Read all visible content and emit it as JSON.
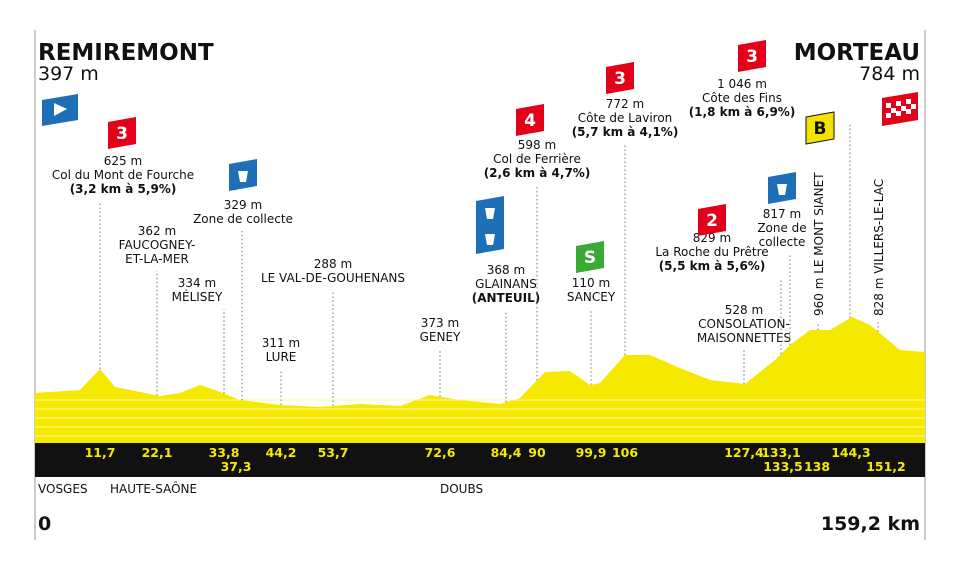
{
  "start": {
    "name": "REMIREMONT",
    "altitude": "397 m",
    "km": "0"
  },
  "finish": {
    "name": "MORTEAU",
    "altitude": "784 m",
    "km": "159,2 km"
  },
  "regions": [
    "VOSGES",
    "HAUTE-SAÔNE",
    "DOUBS"
  ],
  "points": [
    {
      "km": "11,7",
      "lines": [
        "625 m",
        "Col du Mont de Fourche",
        "(3,2 km à 5,9%)"
      ],
      "badges": [
        "3"
      ]
    },
    {
      "km": "22,1",
      "lines": [
        "362 m",
        "FAUCOGNEY-",
        "ET-LA-MER"
      ]
    },
    {
      "km": "33,8",
      "lines": [
        "334 m",
        "MÉLISEY"
      ]
    },
    {
      "km": "37,3",
      "lines": [
        "329 m",
        "Zone de collecte"
      ]
    },
    {
      "km": "44,2",
      "lines": [
        "311 m",
        "LURE"
      ]
    },
    {
      "km": "53,7",
      "lines": [
        "288 m",
        "LE VAL-DE-GOUHENANS"
      ]
    },
    {
      "km": "72,6",
      "lines": [
        "373 m",
        "GENEY"
      ]
    },
    {
      "km": "84,4",
      "lines": [
        "368 m",
        "GLAINANS",
        "(ANTEUIL)"
      ]
    },
    {
      "km": "90",
      "lines": [
        "598 m",
        "Col de Ferrière",
        "(2,6 km à 4,7%)"
      ],
      "badges": [
        "4"
      ]
    },
    {
      "km": "99,9",
      "lines": [
        "110 m",
        "SANCEY"
      ],
      "badges": [
        "S"
      ]
    },
    {
      "km": "106",
      "lines": [
        "772 m",
        "Côte de Laviron",
        "(5,7 km à 4,1%)"
      ],
      "badges": [
        "3"
      ]
    },
    {
      "km": "127,4",
      "lines": [
        "528 m",
        "CONSOLATION-",
        "MAISONNETTES"
      ]
    },
    {
      "km": "133,1",
      "lines": [
        "829 m",
        "La Roche du Prêtre",
        "(5,5 km à 5,6%)"
      ],
      "badges": [
        "2"
      ]
    },
    {
      "km": "133,5",
      "lines": [
        "817 m",
        "Zone de",
        "collecte"
      ]
    },
    {
      "km": "138",
      "lines": [
        "960 m LE MONT SIANET"
      ]
    },
    {
      "km": "144,3",
      "lines": [
        "1 046 m",
        "Côte des Fins",
        "(1,8 km à 6,9%)"
      ],
      "badges": [
        "3",
        "B"
      ]
    },
    {
      "km": "151,2",
      "lines": [
        "828 m VILLERS-LE-LAC"
      ]
    }
  ]
}
